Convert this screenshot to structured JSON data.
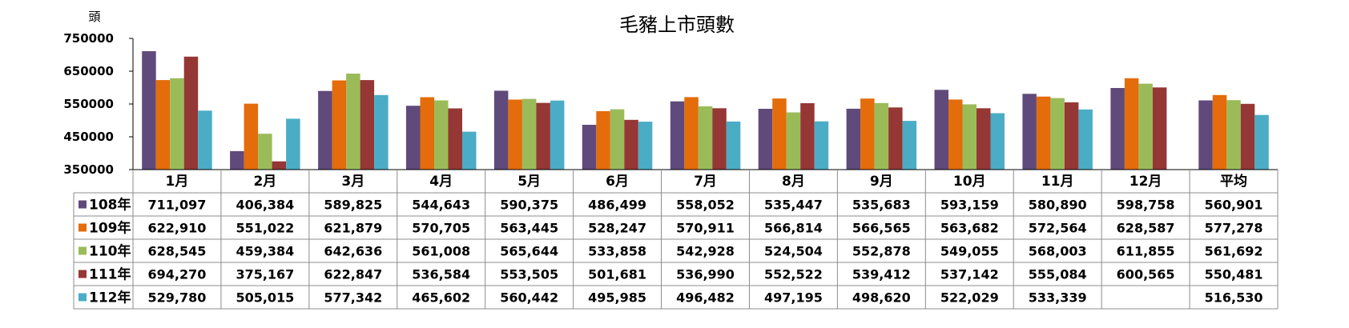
{
  "chart_data": {
    "type": "bar",
    "title": "毛豬上市頭數",
    "ylabel": "頭",
    "ylim": [
      350000,
      750000
    ],
    "yticks": [
      350000,
      450000,
      550000,
      650000,
      750000
    ],
    "categories": [
      "1月",
      "2月",
      "3月",
      "4月",
      "5月",
      "6月",
      "7月",
      "8月",
      "9月",
      "10月",
      "11月",
      "12月",
      "平均"
    ],
    "series": [
      {
        "name": "108年",
        "color": "#604A7B",
        "values": [
          711097,
          406384,
          589825,
          544643,
          590375,
          486499,
          558052,
          535447,
          535683,
          593159,
          580890,
          598758,
          560901
        ],
        "labels": [
          "711,097",
          "406,384",
          "589,825",
          "544,643",
          "590,375",
          "486,499",
          "558,052",
          "535,447",
          "535,683",
          "593,159",
          "580,890",
          "598,758",
          "560,901"
        ]
      },
      {
        "name": "109年",
        "color": "#E46C0A",
        "values": [
          622910,
          551022,
          621879,
          570705,
          563445,
          528247,
          570911,
          566814,
          566565,
          563682,
          572564,
          628587,
          577278
        ],
        "labels": [
          "622,910",
          "551,022",
          "621,879",
          "570,705",
          "563,445",
          "528,247",
          "570,911",
          "566,814",
          "566,565",
          "563,682",
          "572,564",
          "628,587",
          "577,278"
        ]
      },
      {
        "name": "110年",
        "color": "#9BBB59",
        "values": [
          628545,
          459384,
          642636,
          561008,
          565644,
          533858,
          542928,
          524504,
          552878,
          549055,
          568003,
          611855,
          561692
        ],
        "labels": [
          "628,545",
          "459,384",
          "642,636",
          "561,008",
          "565,644",
          "533,858",
          "542,928",
          "524,504",
          "552,878",
          "549,055",
          "568,003",
          "611,855",
          "561,692"
        ]
      },
      {
        "name": "111年",
        "color": "#953735",
        "values": [
          694270,
          375167,
          622847,
          536584,
          553505,
          501681,
          536990,
          552522,
          539412,
          537142,
          555084,
          600565,
          550481
        ],
        "labels": [
          "694,270",
          "375,167",
          "622,847",
          "536,584",
          "553,505",
          "501,681",
          "536,990",
          "552,522",
          "539,412",
          "537,142",
          "555,084",
          "600,565",
          "550,481"
        ]
      },
      {
        "name": "112年",
        "color": "#4BACC6",
        "values": [
          529780,
          505015,
          577342,
          465602,
          560442,
          495985,
          496482,
          497195,
          498620,
          522029,
          533339,
          null,
          516530
        ],
        "labels": [
          "529,780",
          "505,015",
          "577,342",
          "465,602",
          "560,442",
          "495,985",
          "496,482",
          "497,195",
          "498,620",
          "522,029",
          "533,339",
          "",
          "516,530"
        ]
      }
    ],
    "grid": false,
    "legend": "data-table"
  }
}
